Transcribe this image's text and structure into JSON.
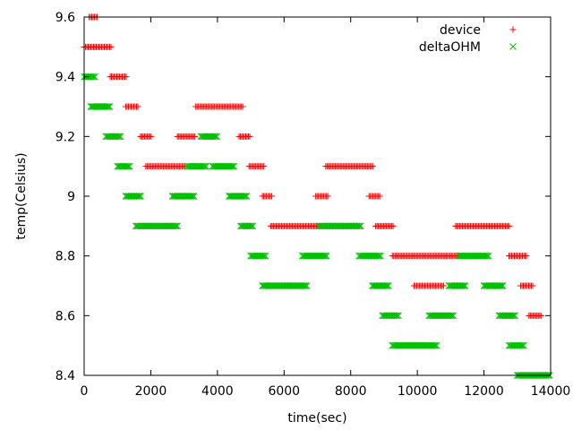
{
  "chart_data": {
    "type": "scatter",
    "xlabel": "time(sec)",
    "ylabel": "temp(Celsius)",
    "xlim": [
      0,
      14000
    ],
    "ylim": [
      8.4,
      9.6
    ],
    "x_ticks": [
      0,
      2000,
      4000,
      6000,
      8000,
      10000,
      12000,
      14000
    ],
    "y_ticks": [
      8.4,
      8.6,
      8.8,
      9,
      9.2,
      9.4,
      9.6
    ],
    "grid": false,
    "legend_position": "top-right",
    "series": [
      {
        "name": "device",
        "marker": "plus",
        "color": "#ff0000",
        "segments": [
          {
            "x_start": 150,
            "x_end": 420,
            "y": 9.6
          },
          {
            "x_start": 0,
            "x_end": 820,
            "y": 9.5
          },
          {
            "x_start": 780,
            "x_end": 1280,
            "y": 9.4
          },
          {
            "x_start": 1250,
            "x_end": 1650,
            "y": 9.3
          },
          {
            "x_start": 3350,
            "x_end": 4780,
            "y": 9.3
          },
          {
            "x_start": 1690,
            "x_end": 2050,
            "y": 9.2
          },
          {
            "x_start": 2800,
            "x_end": 3350,
            "y": 9.2
          },
          {
            "x_start": 4650,
            "x_end": 5000,
            "y": 9.2
          },
          {
            "x_start": 1850,
            "x_end": 3050,
            "y": 9.1
          },
          {
            "x_start": 4950,
            "x_end": 5420,
            "y": 9.1
          },
          {
            "x_start": 7250,
            "x_end": 8700,
            "y": 9.1
          },
          {
            "x_start": 5350,
            "x_end": 5650,
            "y": 9.0
          },
          {
            "x_start": 6950,
            "x_end": 7350,
            "y": 9.0
          },
          {
            "x_start": 8550,
            "x_end": 8900,
            "y": 9.0
          },
          {
            "x_start": 5600,
            "x_end": 7100,
            "y": 8.9
          },
          {
            "x_start": 8750,
            "x_end": 9300,
            "y": 8.9
          },
          {
            "x_start": 11150,
            "x_end": 12800,
            "y": 8.9
          },
          {
            "x_start": 9250,
            "x_end": 11300,
            "y": 8.8
          },
          {
            "x_start": 12750,
            "x_end": 13300,
            "y": 8.8
          },
          {
            "x_start": 9900,
            "x_end": 10800,
            "y": 8.7
          },
          {
            "x_start": 13100,
            "x_end": 13500,
            "y": 8.7
          },
          {
            "x_start": 13350,
            "x_end": 13750,
            "y": 8.6
          }
        ]
      },
      {
        "name": "deltaOHM",
        "marker": "cross",
        "color": "#00c000",
        "segments": [
          {
            "x_start": 0,
            "x_end": 330,
            "y": 9.4
          },
          {
            "x_start": 200,
            "x_end": 780,
            "y": 9.3
          },
          {
            "x_start": 650,
            "x_end": 1100,
            "y": 9.2
          },
          {
            "x_start": 3500,
            "x_end": 4000,
            "y": 9.2
          },
          {
            "x_start": 1000,
            "x_end": 1400,
            "y": 9.1
          },
          {
            "x_start": 3100,
            "x_end": 3700,
            "y": 9.1
          },
          {
            "x_start": 3850,
            "x_end": 4500,
            "y": 9.1
          },
          {
            "x_start": 1250,
            "x_end": 1700,
            "y": 9.0
          },
          {
            "x_start": 2650,
            "x_end": 3300,
            "y": 9.0
          },
          {
            "x_start": 4350,
            "x_end": 4900,
            "y": 9.0
          },
          {
            "x_start": 1550,
            "x_end": 2800,
            "y": 8.9
          },
          {
            "x_start": 4700,
            "x_end": 5100,
            "y": 8.9
          },
          {
            "x_start": 7050,
            "x_end": 8300,
            "y": 8.9
          },
          {
            "x_start": 5000,
            "x_end": 5450,
            "y": 8.8
          },
          {
            "x_start": 6550,
            "x_end": 7300,
            "y": 8.8
          },
          {
            "x_start": 8250,
            "x_end": 8900,
            "y": 8.8
          },
          {
            "x_start": 11250,
            "x_end": 12150,
            "y": 8.8
          },
          {
            "x_start": 5350,
            "x_end": 6700,
            "y": 8.7
          },
          {
            "x_start": 8650,
            "x_end": 9150,
            "y": 8.7
          },
          {
            "x_start": 10950,
            "x_end": 11450,
            "y": 8.7
          },
          {
            "x_start": 12000,
            "x_end": 12600,
            "y": 8.7
          },
          {
            "x_start": 8950,
            "x_end": 9450,
            "y": 8.6
          },
          {
            "x_start": 10350,
            "x_end": 11100,
            "y": 8.6
          },
          {
            "x_start": 12450,
            "x_end": 12950,
            "y": 8.6
          },
          {
            "x_start": 9250,
            "x_end": 10600,
            "y": 8.5
          },
          {
            "x_start": 12750,
            "x_end": 13200,
            "y": 8.5
          },
          {
            "x_start": 13000,
            "x_end": 14000,
            "y": 8.4
          }
        ]
      }
    ]
  }
}
